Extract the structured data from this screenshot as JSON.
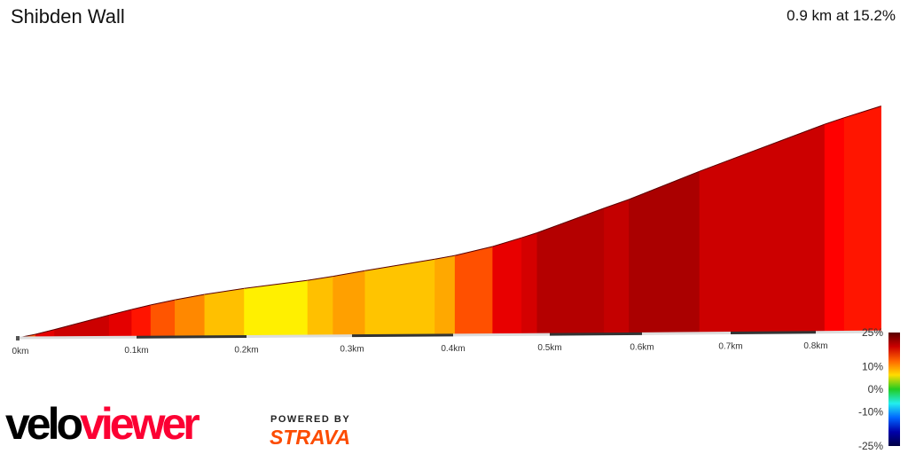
{
  "header": {
    "title": "Shibden Wall",
    "summary": "0.9 km at 15.2%"
  },
  "branding": {
    "logo_part1": "velo",
    "logo_part2": "viewer",
    "powered_by": "POWERED BY",
    "strava": "STRAVA"
  },
  "chart_data": {
    "type": "area",
    "title": "Shibden Wall",
    "xlabel": "",
    "ylabel": "",
    "x_ticks": [
      "0km",
      "0.1km",
      "0.2km",
      "0.3km",
      "0.4km",
      "0.5km",
      "0.6km",
      "0.7km",
      "0.8km"
    ],
    "x_tick_values": [
      0,
      0.1,
      0.2,
      0.3,
      0.4,
      0.5,
      0.6,
      0.7,
      0.8
    ],
    "xlim": [
      0,
      0.88
    ],
    "segments": [
      {
        "start": 0.0,
        "end": 0.015,
        "gradient": 14,
        "color": "#ff5a00"
      },
      {
        "start": 0.015,
        "end": 0.031,
        "gradient": 18,
        "color": "#e60000"
      },
      {
        "start": 0.031,
        "end": 0.077,
        "gradient": 19,
        "color": "#cc0000"
      },
      {
        "start": 0.077,
        "end": 0.096,
        "gradient": 18,
        "color": "#e40000"
      },
      {
        "start": 0.096,
        "end": 0.113,
        "gradient": 16,
        "color": "#ff1400"
      },
      {
        "start": 0.113,
        "end": 0.135,
        "gradient": 14,
        "color": "#ff5500"
      },
      {
        "start": 0.135,
        "end": 0.162,
        "gradient": 12,
        "color": "#ff8800"
      },
      {
        "start": 0.162,
        "end": 0.198,
        "gradient": 10,
        "color": "#ffc000"
      },
      {
        "start": 0.198,
        "end": 0.258,
        "gradient": 8,
        "color": "#fff000"
      },
      {
        "start": 0.258,
        "end": 0.282,
        "gradient": 10,
        "color": "#ffc000"
      },
      {
        "start": 0.282,
        "end": 0.313,
        "gradient": 11,
        "color": "#ffa000"
      },
      {
        "start": 0.313,
        "end": 0.382,
        "gradient": 10,
        "color": "#ffc400"
      },
      {
        "start": 0.382,
        "end": 0.402,
        "gradient": 11,
        "color": "#ffa800"
      },
      {
        "start": 0.402,
        "end": 0.441,
        "gradient": 14,
        "color": "#ff5000"
      },
      {
        "start": 0.441,
        "end": 0.471,
        "gradient": 18,
        "color": "#e80000"
      },
      {
        "start": 0.471,
        "end": 0.487,
        "gradient": 19,
        "color": "#d40000"
      },
      {
        "start": 0.487,
        "end": 0.559,
        "gradient": 21,
        "color": "#b40000"
      },
      {
        "start": 0.559,
        "end": 0.586,
        "gradient": 20,
        "color": "#c40000"
      },
      {
        "start": 0.586,
        "end": 0.665,
        "gradient": 22,
        "color": "#aa0000"
      },
      {
        "start": 0.665,
        "end": 0.811,
        "gradient": 20,
        "color": "#cc0000"
      },
      {
        "start": 0.811,
        "end": 0.835,
        "gradient": 17,
        "color": "#ff0000"
      },
      {
        "start": 0.835,
        "end": 0.88,
        "gradient": 16,
        "color": "#ff1500"
      }
    ],
    "legend": {
      "labels": [
        "25%",
        "10%",
        "0%",
        "-10%",
        "-25%"
      ],
      "values": [
        25,
        10,
        0,
        -10,
        -25
      ],
      "colors": [
        "#5a0000",
        "#cc0000",
        "#ff6600",
        "#ffdd00",
        "#22cc22",
        "#22eeee",
        "#0066ff",
        "#0000aa",
        "#000044"
      ],
      "placement": "right"
    },
    "grid": false
  }
}
